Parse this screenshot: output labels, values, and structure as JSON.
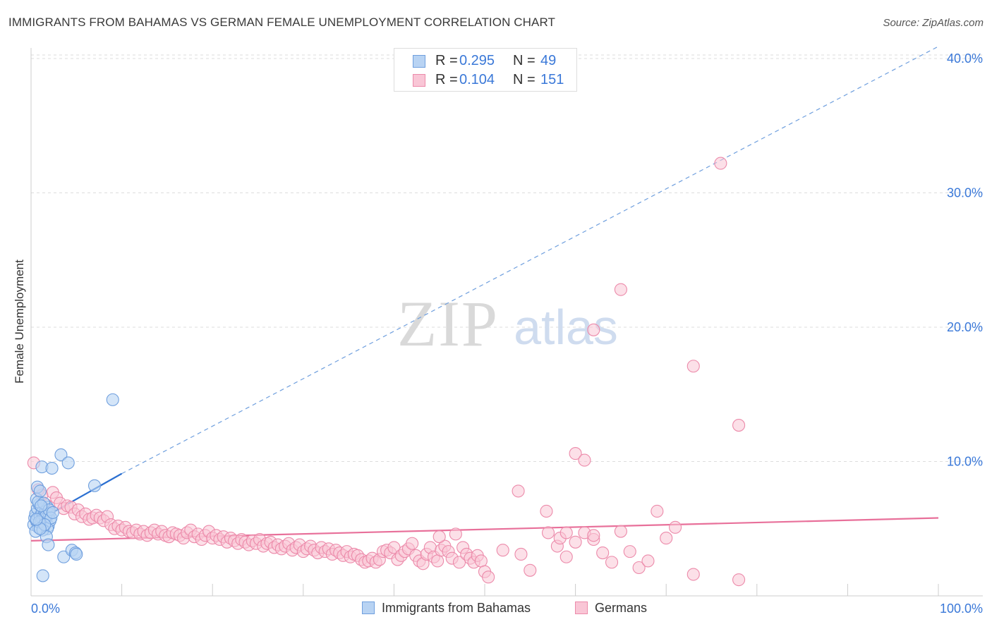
{
  "title": "IMMIGRANTS FROM BAHAMAS VS GERMAN FEMALE UNEMPLOYMENT CORRELATION CHART",
  "source": "Source: ZipAtlas.com",
  "watermark": {
    "zip": "ZIP",
    "atlas": "atlas"
  },
  "legend": {
    "r_label": "R =",
    "n_label": "N =",
    "rows": [
      {
        "r": "0.295",
        "n": "49"
      },
      {
        "r": "0.104",
        "n": "151"
      }
    ]
  },
  "colors": {
    "blue_fill": "#b8d3f3",
    "blue_stroke": "#6f9fde",
    "blue_line": "#2b6fd1",
    "pink_fill": "#f9c6d6",
    "pink_stroke": "#ec8aaa",
    "pink_line": "#e8709a",
    "axis_label": "#3a78d8",
    "grid": "#dddddd"
  },
  "chart_data": {
    "type": "scatter",
    "title": "IMMIGRANTS FROM BAHAMAS VS GERMAN FEMALE UNEMPLOYMENT CORRELATION CHART",
    "xlabel": "",
    "ylabel": "Female Unemployment",
    "xlim": [
      0,
      100
    ],
    "ylim": [
      0,
      42
    ],
    "x_tick_labels": [
      "0.0%",
      "100.0%"
    ],
    "y_ticks": [
      10,
      20,
      30,
      40
    ],
    "y_tick_labels": [
      "10.0%",
      "20.0%",
      "30.0%",
      "40.0%"
    ],
    "grid": true,
    "legend_position": "top-center",
    "series": [
      {
        "name": "Immigrants from Bahamas",
        "r": 0.295,
        "n": 49,
        "trend_solid": {
          "x": [
            0,
            10
          ],
          "y": [
            5.3,
            9.1
          ]
        },
        "trend_dashed": {
          "x": [
            10,
            100
          ],
          "y": [
            9.1,
            40.9
          ]
        },
        "points": [
          [
            0.3,
            5.3
          ],
          [
            0.4,
            5.8
          ],
          [
            0.5,
            6.1
          ],
          [
            0.6,
            5.6
          ],
          [
            0.7,
            6.5
          ],
          [
            0.8,
            5.1
          ],
          [
            0.9,
            6.8
          ],
          [
            1.0,
            5.9
          ],
          [
            1.1,
            5.5
          ],
          [
            1.2,
            6.2
          ],
          [
            1.3,
            5.7
          ],
          [
            1.4,
            6.0
          ],
          [
            1.5,
            5.4
          ],
          [
            1.6,
            6.3
          ],
          [
            1.7,
            5.8
          ],
          [
            1.8,
            6.6
          ],
          [
            1.9,
            5.2
          ],
          [
            2.0,
            6.1
          ],
          [
            2.1,
            5.6
          ],
          [
            0.5,
            4.8
          ],
          [
            0.6,
            7.2
          ],
          [
            0.7,
            8.1
          ],
          [
            0.8,
            7.0
          ],
          [
            1.0,
            7.8
          ],
          [
            1.2,
            9.6
          ],
          [
            1.4,
            6.9
          ],
          [
            1.6,
            5.9
          ],
          [
            1.8,
            5.0
          ],
          [
            2.0,
            6.4
          ],
          [
            2.2,
            5.8
          ],
          [
            0.9,
            5.5
          ],
          [
            1.1,
            6.7
          ],
          [
            1.3,
            4.9
          ],
          [
            1.5,
            5.3
          ],
          [
            1.7,
            4.4
          ],
          [
            1.9,
            3.8
          ],
          [
            2.3,
            9.5
          ],
          [
            3.3,
            10.5
          ],
          [
            4.1,
            9.9
          ],
          [
            3.6,
            2.9
          ],
          [
            4.5,
            3.4
          ],
          [
            4.9,
            3.2
          ],
          [
            5.0,
            3.1
          ],
          [
            7.0,
            8.2
          ],
          [
            9.0,
            14.6
          ],
          [
            1.3,
            1.5
          ],
          [
            2.4,
            6.2
          ],
          [
            1.0,
            5.0
          ],
          [
            0.6,
            5.7
          ]
        ]
      },
      {
        "name": "Germans",
        "r": 0.104,
        "n": 151,
        "trend": {
          "x": [
            0,
            100
          ],
          "y": [
            4.1,
            5.8
          ]
        },
        "points": [
          [
            0.3,
            9.9
          ],
          [
            0.8,
            7.9
          ],
          [
            1.2,
            7.5
          ],
          [
            1.6,
            6.8
          ],
          [
            2.0,
            6.3
          ],
          [
            2.4,
            7.7
          ],
          [
            2.8,
            7.3
          ],
          [
            3.2,
            6.9
          ],
          [
            3.6,
            6.5
          ],
          [
            4.0,
            6.7
          ],
          [
            4.4,
            6.6
          ],
          [
            4.8,
            6.1
          ],
          [
            5.2,
            6.4
          ],
          [
            5.6,
            5.9
          ],
          [
            6.0,
            6.1
          ],
          [
            6.4,
            5.7
          ],
          [
            6.8,
            5.8
          ],
          [
            7.2,
            6.0
          ],
          [
            7.6,
            5.8
          ],
          [
            8.0,
            5.6
          ],
          [
            8.4,
            5.9
          ],
          [
            8.8,
            5.3
          ],
          [
            9.2,
            5.0
          ],
          [
            9.6,
            5.2
          ],
          [
            10.0,
            4.9
          ],
          [
            10.4,
            5.1
          ],
          [
            10.8,
            4.8
          ],
          [
            11.2,
            4.7
          ],
          [
            11.6,
            4.9
          ],
          [
            12.0,
            4.6
          ],
          [
            12.4,
            4.8
          ],
          [
            12.8,
            4.5
          ],
          [
            13.2,
            4.7
          ],
          [
            13.6,
            4.9
          ],
          [
            14.0,
            4.6
          ],
          [
            14.4,
            4.8
          ],
          [
            14.8,
            4.5
          ],
          [
            15.2,
            4.4
          ],
          [
            15.6,
            4.7
          ],
          [
            16.0,
            4.6
          ],
          [
            16.4,
            4.5
          ],
          [
            16.8,
            4.3
          ],
          [
            17.2,
            4.7
          ],
          [
            17.6,
            4.9
          ],
          [
            18.0,
            4.4
          ],
          [
            18.4,
            4.6
          ],
          [
            18.8,
            4.2
          ],
          [
            19.2,
            4.5
          ],
          [
            19.6,
            4.8
          ],
          [
            20.0,
            4.3
          ],
          [
            20.4,
            4.5
          ],
          [
            20.8,
            4.2
          ],
          [
            21.2,
            4.4
          ],
          [
            21.6,
            4.0
          ],
          [
            22.0,
            4.3
          ],
          [
            22.4,
            4.1
          ],
          [
            22.8,
            3.9
          ],
          [
            23.2,
            4.2
          ],
          [
            23.6,
            4.0
          ],
          [
            24.0,
            3.8
          ],
          [
            24.4,
            4.1
          ],
          [
            24.8,
            3.9
          ],
          [
            25.2,
            4.2
          ],
          [
            25.6,
            3.7
          ],
          [
            26.0,
            3.9
          ],
          [
            26.4,
            4.0
          ],
          [
            26.8,
            3.6
          ],
          [
            27.2,
            3.8
          ],
          [
            27.6,
            3.5
          ],
          [
            28.0,
            3.7
          ],
          [
            28.4,
            3.9
          ],
          [
            28.8,
            3.4
          ],
          [
            29.2,
            3.6
          ],
          [
            29.6,
            3.8
          ],
          [
            30.0,
            3.3
          ],
          [
            30.4,
            3.5
          ],
          [
            30.8,
            3.7
          ],
          [
            31.2,
            3.4
          ],
          [
            31.6,
            3.2
          ],
          [
            32.0,
            3.6
          ],
          [
            32.4,
            3.3
          ],
          [
            32.8,
            3.5
          ],
          [
            33.2,
            3.1
          ],
          [
            33.6,
            3.4
          ],
          [
            34.0,
            3.2
          ],
          [
            34.4,
            3.0
          ],
          [
            34.8,
            3.3
          ],
          [
            35.2,
            2.9
          ],
          [
            35.6,
            3.1
          ],
          [
            36.0,
            3.0
          ],
          [
            36.4,
            2.7
          ],
          [
            36.8,
            2.5
          ],
          [
            37.2,
            2.6
          ],
          [
            37.6,
            2.8
          ],
          [
            38.0,
            2.5
          ],
          [
            38.4,
            2.7
          ],
          [
            38.8,
            3.3
          ],
          [
            39.2,
            3.4
          ],
          [
            39.6,
            3.2
          ],
          [
            40.0,
            3.6
          ],
          [
            40.4,
            2.7
          ],
          [
            40.8,
            3.0
          ],
          [
            41.2,
            3.3
          ],
          [
            41.6,
            3.5
          ],
          [
            42.0,
            3.9
          ],
          [
            42.4,
            3.0
          ],
          [
            42.8,
            2.6
          ],
          [
            43.2,
            2.4
          ],
          [
            43.6,
            3.1
          ],
          [
            44.0,
            3.6
          ],
          [
            44.4,
            2.9
          ],
          [
            44.8,
            2.6
          ],
          [
            45.2,
            3.4
          ],
          [
            45.6,
            3.7
          ],
          [
            46.0,
            3.3
          ],
          [
            46.4,
            2.8
          ],
          [
            46.8,
            4.6
          ],
          [
            47.2,
            2.5
          ],
          [
            47.6,
            3.6
          ],
          [
            48.0,
            3.1
          ],
          [
            48.4,
            2.8
          ],
          [
            48.8,
            2.5
          ],
          [
            49.2,
            3.0
          ],
          [
            49.6,
            2.6
          ],
          [
            50.0,
            1.8
          ],
          [
            50.4,
            1.4
          ],
          [
            55.0,
            1.9
          ],
          [
            58.0,
            3.7
          ],
          [
            59.0,
            2.9
          ],
          [
            60.0,
            4.0
          ],
          [
            61.0,
            4.7
          ],
          [
            62.0,
            4.2
          ],
          [
            63.0,
            3.2
          ],
          [
            64.0,
            2.5
          ],
          [
            65.0,
            4.8
          ],
          [
            66.0,
            3.3
          ],
          [
            67.0,
            2.1
          ],
          [
            68.0,
            2.6
          ],
          [
            69.0,
            6.3
          ],
          [
            70.0,
            4.3
          ],
          [
            71.0,
            5.1
          ],
          [
            73.0,
            1.6
          ],
          [
            78.0,
            1.2
          ],
          [
            60.0,
            10.6
          ],
          [
            61.0,
            10.1
          ],
          [
            56.8,
            6.3
          ],
          [
            53.7,
            7.8
          ],
          [
            65.0,
            22.8
          ],
          [
            78.0,
            12.7
          ],
          [
            73.0,
            17.1
          ],
          [
            62.0,
            19.8
          ],
          [
            76.0,
            32.2
          ],
          [
            45.0,
            4.4
          ],
          [
            52.0,
            3.4
          ],
          [
            54.0,
            3.1
          ],
          [
            57.0,
            4.7
          ],
          [
            58.3,
            4.3
          ],
          [
            59.0,
            4.7
          ],
          [
            62.0,
            4.5
          ]
        ]
      }
    ]
  },
  "bottom_legend": {
    "items": [
      {
        "label": "Immigrants from Bahamas"
      },
      {
        "label": "Germans"
      }
    ]
  }
}
